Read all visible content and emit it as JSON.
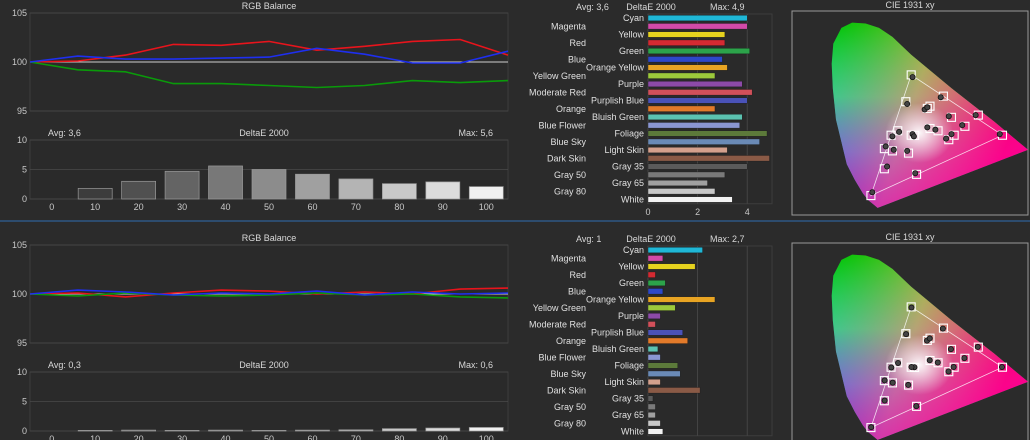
{
  "chart_data": [
    {
      "panel": "top",
      "rgb_balance": {
        "type": "line",
        "title": "RGB Balance",
        "yticks": [
          95,
          100,
          105
        ],
        "ylim": [
          95,
          105
        ],
        "x": [
          0,
          10,
          20,
          30,
          40,
          50,
          60,
          70,
          80,
          90,
          100
        ],
        "series": [
          {
            "color": "#e8141c",
            "values": [
              100,
              100.1,
              100.7,
              101.8,
              101.7,
              102.1,
              101.2,
              101.6,
              102.1,
              102.3,
              100.7
            ]
          },
          {
            "color": "#0a9a0a",
            "values": [
              100,
              99.2,
              99.0,
              97.8,
              97.8,
              97.6,
              97.4,
              97.6,
              98.1,
              97.9,
              98.1
            ]
          },
          {
            "color": "#1e2ff0",
            "values": [
              100,
              100.6,
              100.3,
              100.3,
              100.4,
              100.5,
              101.4,
              100.8,
              99.9,
              99.9,
              101.1
            ]
          }
        ]
      },
      "grayscale_delta": {
        "type": "bar",
        "title": "DeltaE 2000",
        "avg_label": "Avg: 3,6",
        "max_label": "Max: 5,6",
        "yticks": [
          0,
          5,
          10
        ],
        "ylim": [
          0,
          10
        ],
        "categories": [
          "0",
          "10",
          "20",
          "30",
          "40",
          "50",
          "60",
          "70",
          "80",
          "90",
          "100"
        ],
        "values": [
          0,
          1.8,
          3.0,
          4.7,
          5.6,
          5.0,
          4.2,
          3.4,
          2.6,
          2.9,
          2.1
        ]
      },
      "color_delta": {
        "type": "bar",
        "title": "DeltaE 2000",
        "avg_label": "Avg: 3,6",
        "max_label": "Max: 4,9",
        "xticks": [
          0,
          2,
          4
        ],
        "xlim": [
          0,
          5
        ],
        "bars": [
          {
            "label": "Cyan",
            "value": 4.0,
            "color": "#1fb7d6"
          },
          {
            "label": "Magenta",
            "value": 4.0,
            "color": "#d24aa8"
          },
          {
            "label": "Yellow",
            "value": 3.1,
            "color": "#e6d21e"
          },
          {
            "label": "Red",
            "value": 3.1,
            "color": "#d42a32"
          },
          {
            "label": "Green",
            "value": 4.1,
            "color": "#2ca34a"
          },
          {
            "label": "Blue",
            "value": 3.0,
            "color": "#2d48c8"
          },
          {
            "label": "Orange Yellow",
            "value": 3.2,
            "color": "#e8a423"
          },
          {
            "label": "Yellow Green",
            "value": 2.7,
            "color": "#9cc93b"
          },
          {
            "label": "Purple",
            "value": 3.8,
            "color": "#8c4aa8"
          },
          {
            "label": "Moderate Red",
            "value": 4.2,
            "color": "#d2505a"
          },
          {
            "label": "Purplish Blue",
            "value": 4.0,
            "color": "#4a52b8"
          },
          {
            "label": "Orange",
            "value": 2.7,
            "color": "#e27a2a"
          },
          {
            "label": "Bluish Green",
            "value": 3.8,
            "color": "#5bc2b0"
          },
          {
            "label": "Blue Flower",
            "value": 3.7,
            "color": "#8a96d2"
          },
          {
            "label": "Foliage",
            "value": 4.8,
            "color": "#5c7a3a"
          },
          {
            "label": "Blue Sky",
            "value": 4.5,
            "color": "#6a8ab6"
          },
          {
            "label": "Light Skin",
            "value": 3.2,
            "color": "#d4a08c"
          },
          {
            "label": "Dark Skin",
            "value": 4.9,
            "color": "#8a5a46"
          },
          {
            "label": "Gray 35",
            "value": 4.0,
            "color": "#5a5a5a"
          },
          {
            "label": "Gray 50",
            "value": 3.1,
            "color": "#7a7a7a"
          },
          {
            "label": "Gray 65",
            "value": 2.4,
            "color": "#a0a0a0"
          },
          {
            "label": "Gray 80",
            "value": 2.7,
            "color": "#c8c8c8"
          },
          {
            "label": "White",
            "value": 3.4,
            "color": "#f2f2f2"
          }
        ]
      },
      "cie": {
        "type": "scatter",
        "title": "CIE 1931 xy",
        "targets": [
          [
            0.64,
            0.33
          ],
          [
            0.3,
            0.6
          ],
          [
            0.15,
            0.06
          ],
          [
            0.225,
            0.33
          ],
          [
            0.32,
            0.155
          ],
          [
            0.42,
            0.505
          ],
          [
            0.3127,
            0.329
          ],
          [
            0.37,
            0.36
          ],
          [
            0.45,
            0.41
          ],
          [
            0.25,
            0.35
          ],
          [
            0.4,
            0.35
          ],
          [
            0.55,
            0.42
          ],
          [
            0.2,
            0.18
          ],
          [
            0.36,
            0.45
          ],
          [
            0.29,
            0.25
          ],
          [
            0.5,
            0.37
          ],
          [
            0.44,
            0.31
          ],
          [
            0.23,
            0.26
          ],
          [
            0.37,
            0.46
          ],
          [
            0.2,
            0.27
          ],
          [
            0.28,
            0.48
          ],
          [
            0.3,
            0.33
          ],
          [
            0.46,
            0.33
          ]
        ],
        "measured": [
          [
            0.63,
            0.335
          ],
          [
            0.305,
            0.59
          ],
          [
            0.155,
            0.075
          ],
          [
            0.23,
            0.325
          ],
          [
            0.315,
            0.16
          ],
          [
            0.41,
            0.5
          ],
          [
            0.305,
            0.335
          ],
          [
            0.36,
            0.365
          ],
          [
            0.44,
            0.415
          ],
          [
            0.255,
            0.345
          ],
          [
            0.39,
            0.355
          ],
          [
            0.54,
            0.42
          ],
          [
            0.21,
            0.19
          ],
          [
            0.35,
            0.445
          ],
          [
            0.285,
            0.26
          ],
          [
            0.49,
            0.375
          ],
          [
            0.43,
            0.315
          ],
          [
            0.235,
            0.265
          ],
          [
            0.36,
            0.455
          ],
          [
            0.205,
            0.28
          ],
          [
            0.285,
            0.47
          ],
          [
            0.31,
            0.325
          ],
          [
            0.45,
            0.335
          ]
        ]
      }
    },
    {
      "panel": "bottom",
      "rgb_balance": {
        "type": "line",
        "title": "RGB Balance",
        "yticks": [
          95,
          100,
          105
        ],
        "ylim": [
          95,
          105
        ],
        "x": [
          0,
          10,
          20,
          30,
          40,
          50,
          60,
          70,
          80,
          90,
          100
        ],
        "series": [
          {
            "color": "#e8141c",
            "values": [
              100,
              100.1,
              99.7,
              100.1,
              100.4,
              100.3,
              100.0,
              100.2,
              100.0,
              100.5,
              100.6
            ]
          },
          {
            "color": "#0a9a0a",
            "values": [
              100,
              99.8,
              100.1,
              99.9,
              99.8,
              99.9,
              100.1,
              99.9,
              100.0,
              99.7,
              99.6
            ]
          },
          {
            "color": "#1e2ff0",
            "values": [
              100,
              100.4,
              100.2,
              99.9,
              100.1,
              100.0,
              100.3,
              99.9,
              100.2,
              100.0,
              100.1
            ]
          }
        ]
      },
      "grayscale_delta": {
        "type": "bar",
        "title": "DeltaE 2000",
        "avg_label": "Avg: 0,3",
        "max_label": "Max: 0,6",
        "yticks": [
          0,
          5,
          10
        ],
        "ylim": [
          0,
          10
        ],
        "categories": [
          "0",
          "10",
          "20",
          "30",
          "40",
          "50",
          "60",
          "70",
          "80",
          "90",
          "100"
        ],
        "values": [
          0,
          0.1,
          0.15,
          0.1,
          0.15,
          0.1,
          0.15,
          0.2,
          0.4,
          0.5,
          0.6
        ]
      },
      "color_delta": {
        "type": "bar",
        "title": "DeltaE 2000",
        "avg_label": "Avg: 1",
        "max_label": "Max: 2,7",
        "xticks": [
          0,
          2,
          4
        ],
        "xlim": [
          0,
          5
        ],
        "bars": [
          {
            "label": "Cyan",
            "value": 2.2,
            "color": "#1fb7d6"
          },
          {
            "label": "Magenta",
            "value": 0.6,
            "color": "#d24aa8"
          },
          {
            "label": "Yellow",
            "value": 1.9,
            "color": "#e6d21e"
          },
          {
            "label": "Red",
            "value": 0.3,
            "color": "#d42a32"
          },
          {
            "label": "Green",
            "value": 0.7,
            "color": "#2ca34a"
          },
          {
            "label": "Blue",
            "value": 0.6,
            "color": "#2d48c8"
          },
          {
            "label": "Orange Yellow",
            "value": 2.7,
            "color": "#e8a423"
          },
          {
            "label": "Yellow Green",
            "value": 1.1,
            "color": "#9cc93b"
          },
          {
            "label": "Purple",
            "value": 0.5,
            "color": "#8c4aa8"
          },
          {
            "label": "Moderate Red",
            "value": 0.3,
            "color": "#d2505a"
          },
          {
            "label": "Purplish Blue",
            "value": 1.4,
            "color": "#4a52b8"
          },
          {
            "label": "Orange",
            "value": 1.6,
            "color": "#e27a2a"
          },
          {
            "label": "Bluish Green",
            "value": 0.4,
            "color": "#5bc2b0"
          },
          {
            "label": "Blue Flower",
            "value": 0.5,
            "color": "#8a96d2"
          },
          {
            "label": "Foliage",
            "value": 1.2,
            "color": "#5c7a3a"
          },
          {
            "label": "Blue Sky",
            "value": 1.3,
            "color": "#6a8ab6"
          },
          {
            "label": "Light Skin",
            "value": 0.5,
            "color": "#d4a08c"
          },
          {
            "label": "Dark Skin",
            "value": 2.1,
            "color": "#8a5a46"
          },
          {
            "label": "Gray 35",
            "value": 0.2,
            "color": "#5a5a5a"
          },
          {
            "label": "Gray 50",
            "value": 0.3,
            "color": "#7a7a7a"
          },
          {
            "label": "Gray 65",
            "value": 0.3,
            "color": "#a0a0a0"
          },
          {
            "label": "Gray 80",
            "value": 0.5,
            "color": "#c8c8c8"
          },
          {
            "label": "White",
            "value": 0.6,
            "color": "#f2f2f2"
          }
        ]
      },
      "cie": {
        "type": "scatter",
        "title": "CIE 1931 xy",
        "targets": [
          [
            0.64,
            0.33
          ],
          [
            0.3,
            0.6
          ],
          [
            0.15,
            0.06
          ],
          [
            0.225,
            0.33
          ],
          [
            0.32,
            0.155
          ],
          [
            0.42,
            0.505
          ],
          [
            0.3127,
            0.329
          ],
          [
            0.37,
            0.36
          ],
          [
            0.45,
            0.41
          ],
          [
            0.25,
            0.35
          ],
          [
            0.4,
            0.35
          ],
          [
            0.55,
            0.42
          ],
          [
            0.2,
            0.18
          ],
          [
            0.36,
            0.45
          ],
          [
            0.29,
            0.25
          ],
          [
            0.5,
            0.37
          ],
          [
            0.44,
            0.31
          ],
          [
            0.23,
            0.26
          ],
          [
            0.37,
            0.46
          ],
          [
            0.2,
            0.27
          ],
          [
            0.28,
            0.48
          ],
          [
            0.3,
            0.33
          ],
          [
            0.46,
            0.33
          ]
        ],
        "measured": [
          [
            0.638,
            0.331
          ],
          [
            0.301,
            0.597
          ],
          [
            0.151,
            0.062
          ],
          [
            0.226,
            0.329
          ],
          [
            0.319,
            0.156
          ],
          [
            0.418,
            0.503
          ],
          [
            0.312,
            0.33
          ],
          [
            0.369,
            0.361
          ],
          [
            0.448,
            0.411
          ],
          [
            0.251,
            0.349
          ],
          [
            0.399,
            0.351
          ],
          [
            0.548,
            0.421
          ],
          [
            0.201,
            0.181
          ],
          [
            0.359,
            0.449
          ],
          [
            0.289,
            0.251
          ],
          [
            0.498,
            0.371
          ],
          [
            0.439,
            0.311
          ],
          [
            0.231,
            0.261
          ],
          [
            0.369,
            0.459
          ],
          [
            0.201,
            0.271
          ],
          [
            0.281,
            0.478
          ],
          [
            0.301,
            0.331
          ],
          [
            0.458,
            0.331
          ]
        ]
      }
    }
  ]
}
